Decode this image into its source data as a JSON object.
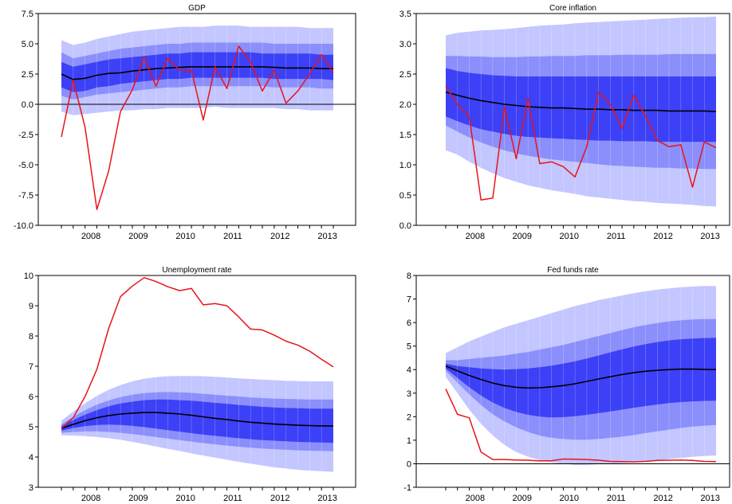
{
  "colors": {
    "band_outer": "#C3C6FF",
    "band_mid": "#8B8FFB",
    "band_inner": "#3C40F6",
    "median": "#000000",
    "actual": "#E8141A",
    "zero_line": "#000000"
  },
  "chart_data": [
    {
      "type": "area",
      "title": "GDP",
      "x": [
        2007.75,
        2008.0,
        2008.25,
        2008.5,
        2008.75,
        2009.0,
        2009.25,
        2009.5,
        2009.75,
        2010.0,
        2010.25,
        2010.5,
        2010.75,
        2011.0,
        2011.25,
        2011.5,
        2011.75,
        2012.0,
        2012.25,
        2012.5,
        2012.75,
        2013.0,
        2013.25,
        2013.5
      ],
      "ylim": [
        -10.0,
        7.5
      ],
      "ytick_labels": [
        "7.5",
        "5.0",
        "2.5",
        "0.0",
        "-2.5",
        "-5.0",
        "-7.5",
        "-10.0"
      ],
      "ytick_values": [
        7.5,
        5.0,
        2.5,
        0.0,
        -2.5,
        -5.0,
        -7.5,
        -10.0
      ],
      "xtick_labels": [
        "2008",
        "2009",
        "2010",
        "2011",
        "2012",
        "2013"
      ],
      "xtick_values": [
        2008.0,
        2009.0,
        2010.0,
        2011.0,
        2012.0,
        2013.0
      ],
      "zero_line": 0,
      "bands": {
        "outer_lo": [
          -0.6,
          -0.9,
          -0.8,
          -0.7,
          -0.6,
          -0.5,
          -0.5,
          -0.4,
          -0.4,
          -0.3,
          -0.3,
          -0.3,
          -0.3,
          -0.2,
          -0.3,
          -0.3,
          -0.3,
          -0.3,
          -0.3,
          -0.4,
          -0.4,
          -0.5,
          -0.5,
          -0.5
        ],
        "outer_hi": [
          5.3,
          4.9,
          5.1,
          5.4,
          5.6,
          5.8,
          6.0,
          6.1,
          6.2,
          6.3,
          6.4,
          6.4,
          6.4,
          6.5,
          6.5,
          6.5,
          6.4,
          6.4,
          6.4,
          6.4,
          6.4,
          6.3,
          6.3,
          6.3
        ],
        "mid_lo": [
          0.7,
          0.4,
          0.6,
          0.8,
          0.9,
          1.0,
          1.1,
          1.2,
          1.3,
          1.4,
          1.4,
          1.5,
          1.5,
          1.5,
          1.5,
          1.5,
          1.5,
          1.5,
          1.4,
          1.4,
          1.4,
          1.4,
          1.3,
          1.3
        ],
        "mid_hi": [
          4.3,
          3.8,
          4.0,
          4.2,
          4.4,
          4.6,
          4.7,
          4.8,
          4.9,
          5.0,
          5.0,
          5.1,
          5.1,
          5.1,
          5.1,
          5.1,
          5.1,
          5.1,
          5.0,
          5.0,
          5.0,
          5.0,
          5.0,
          5.0
        ],
        "inner_lo": [
          1.4,
          1.0,
          1.1,
          1.4,
          1.5,
          1.7,
          1.8,
          1.9,
          2.0,
          2.1,
          2.1,
          2.2,
          2.2,
          2.2,
          2.2,
          2.2,
          2.2,
          2.2,
          2.1,
          2.1,
          2.1,
          2.1,
          2.1,
          2.0
        ],
        "inner_hi": [
          3.5,
          3.1,
          3.3,
          3.5,
          3.7,
          3.8,
          3.9,
          4.0,
          4.1,
          4.2,
          4.2,
          4.3,
          4.3,
          4.3,
          4.3,
          4.3,
          4.3,
          4.2,
          4.2,
          4.2,
          4.2,
          4.2,
          4.1,
          4.1
        ]
      },
      "median": [
        2.5,
        2.05,
        2.15,
        2.4,
        2.55,
        2.6,
        2.75,
        2.85,
        2.95,
        3.0,
        3.05,
        3.1,
        3.1,
        3.1,
        3.1,
        3.1,
        3.1,
        3.1,
        3.05,
        3.0,
        3.0,
        3.0,
        2.95,
        2.95
      ],
      "actual": [
        -2.7,
        2.0,
        -1.9,
        -8.7,
        -5.5,
        -0.6,
        1.2,
        3.9,
        1.5,
        3.8,
        2.8,
        2.8,
        -1.3,
        3.1,
        1.3,
        4.8,
        3.5,
        1.1,
        2.8,
        0.1,
        1.1,
        2.5,
        4.1,
        2.6
      ]
    },
    {
      "type": "area",
      "title": "Core inflation",
      "x": [
        2007.75,
        2008.0,
        2008.25,
        2008.5,
        2008.75,
        2009.0,
        2009.25,
        2009.5,
        2009.75,
        2010.0,
        2010.25,
        2010.5,
        2010.75,
        2011.0,
        2011.25,
        2011.5,
        2011.75,
        2012.0,
        2012.25,
        2012.5,
        2012.75,
        2013.0,
        2013.25,
        2013.5
      ],
      "ylim": [
        0.0,
        3.5
      ],
      "ytick_labels": [
        "3.5",
        "3.0",
        "2.5",
        "2.0",
        "1.5",
        "1.0",
        "0.5",
        "0.0"
      ],
      "ytick_values": [
        3.5,
        3.0,
        2.5,
        2.0,
        1.5,
        1.0,
        0.5,
        0.0
      ],
      "xtick_labels": [
        "2008",
        "2009",
        "2010",
        "2011",
        "2012",
        "2013"
      ],
      "xtick_values": [
        2008.0,
        2009.0,
        2010.0,
        2011.0,
        2012.0,
        2013.0
      ],
      "bands": {
        "outer_lo": [
          1.24,
          1.17,
          1.05,
          0.95,
          0.86,
          0.78,
          0.72,
          0.66,
          0.62,
          0.58,
          0.55,
          0.52,
          0.48,
          0.46,
          0.44,
          0.42,
          0.4,
          0.39,
          0.37,
          0.36,
          0.35,
          0.34,
          0.32,
          0.31
        ],
        "outer_hi": [
          3.14,
          3.18,
          3.2,
          3.22,
          3.23,
          3.24,
          3.26,
          3.28,
          3.3,
          3.31,
          3.32,
          3.34,
          3.35,
          3.36,
          3.37,
          3.38,
          3.39,
          3.4,
          3.41,
          3.42,
          3.43,
          3.44,
          3.44,
          3.45
        ],
        "mid_lo": [
          1.65,
          1.55,
          1.45,
          1.37,
          1.3,
          1.24,
          1.19,
          1.15,
          1.12,
          1.09,
          1.07,
          1.05,
          1.03,
          1.01,
          0.99,
          0.98,
          0.97,
          0.96,
          0.95,
          0.95,
          0.94,
          0.94,
          0.93,
          0.93
        ],
        "mid_hi": [
          2.8,
          2.8,
          2.79,
          2.79,
          2.78,
          2.78,
          2.78,
          2.79,
          2.79,
          2.8,
          2.8,
          2.8,
          2.81,
          2.81,
          2.81,
          2.82,
          2.82,
          2.82,
          2.82,
          2.83,
          2.83,
          2.83,
          2.83,
          2.83
        ],
        "inner_lo": [
          1.8,
          1.72,
          1.65,
          1.59,
          1.55,
          1.51,
          1.48,
          1.46,
          1.45,
          1.44,
          1.43,
          1.42,
          1.41,
          1.4,
          1.4,
          1.39,
          1.39,
          1.39,
          1.38,
          1.38,
          1.38,
          1.38,
          1.38,
          1.38
        ],
        "inner_hi": [
          2.6,
          2.55,
          2.52,
          2.5,
          2.48,
          2.47,
          2.46,
          2.46,
          2.46,
          2.46,
          2.46,
          2.46,
          2.46,
          2.46,
          2.46,
          2.46,
          2.46,
          2.46,
          2.46,
          2.46,
          2.46,
          2.46,
          2.46,
          2.46
        ]
      },
      "median": [
        2.2,
        2.15,
        2.1,
        2.06,
        2.03,
        2.0,
        1.98,
        1.96,
        1.95,
        1.94,
        1.94,
        1.93,
        1.92,
        1.92,
        1.91,
        1.91,
        1.9,
        1.9,
        1.9,
        1.89,
        1.89,
        1.89,
        1.89,
        1.88
      ],
      "actual": [
        2.3,
        2.0,
        1.8,
        0.42,
        0.45,
        1.95,
        1.1,
        2.1,
        1.02,
        1.05,
        0.97,
        0.8,
        1.3,
        2.2,
        2.0,
        1.6,
        2.15,
        1.8,
        1.4,
        1.3,
        1.33,
        0.63,
        1.38,
        1.28
      ]
    },
    {
      "type": "area",
      "title": "Unemployment rate",
      "x": [
        2007.75,
        2008.0,
        2008.25,
        2008.5,
        2008.75,
        2009.0,
        2009.25,
        2009.5,
        2009.75,
        2010.0,
        2010.25,
        2010.5,
        2010.75,
        2011.0,
        2011.25,
        2011.5,
        2011.75,
        2012.0,
        2012.25,
        2012.5,
        2012.75,
        2013.0,
        2013.25,
        2013.5
      ],
      "ylim": [
        3,
        10
      ],
      "ytick_labels": [
        "10",
        "9",
        "8",
        "7",
        "6",
        "5",
        "4",
        "3"
      ],
      "ytick_values": [
        10,
        9,
        8,
        7,
        6,
        5,
        4,
        3
      ],
      "xtick_labels": [
        "2008",
        "2009",
        "2010",
        "2011",
        "2012",
        "2013"
      ],
      "xtick_values": [
        2008.0,
        2009.0,
        2010.0,
        2011.0,
        2012.0,
        2013.0
      ],
      "bands": {
        "outer_lo": [
          4.72,
          4.71,
          4.69,
          4.66,
          4.62,
          4.57,
          4.5,
          4.43,
          4.35,
          4.27,
          4.2,
          4.12,
          4.05,
          3.98,
          3.91,
          3.84,
          3.78,
          3.72,
          3.66,
          3.62,
          3.58,
          3.55,
          3.53,
          3.51
        ],
        "outer_hi": [
          5.2,
          5.5,
          5.78,
          6.02,
          6.22,
          6.38,
          6.5,
          6.59,
          6.64,
          6.67,
          6.68,
          6.68,
          6.67,
          6.65,
          6.63,
          6.6,
          6.58,
          6.56,
          6.54,
          6.52,
          6.51,
          6.5,
          6.5,
          6.5
        ],
        "mid_lo": [
          4.8,
          4.83,
          4.85,
          4.85,
          4.83,
          4.8,
          4.76,
          4.71,
          4.66,
          4.61,
          4.56,
          4.51,
          4.46,
          4.42,
          4.38,
          4.34,
          4.31,
          4.28,
          4.26,
          4.24,
          4.22,
          4.21,
          4.2,
          4.19
        ],
        "mid_hi": [
          5.08,
          5.33,
          5.55,
          5.73,
          5.87,
          5.98,
          6.06,
          6.11,
          6.14,
          6.15,
          6.14,
          6.12,
          6.09,
          6.06,
          6.03,
          6.0,
          5.97,
          5.95,
          5.93,
          5.92,
          5.91,
          5.9,
          5.9,
          5.9
        ],
        "inner_lo": [
          4.87,
          4.96,
          5.02,
          5.06,
          5.07,
          5.06,
          5.03,
          4.99,
          4.94,
          4.89,
          4.84,
          4.79,
          4.74,
          4.7,
          4.66,
          4.62,
          4.59,
          4.56,
          4.54,
          4.52,
          4.5,
          4.49,
          4.48,
          4.47
        ],
        "inner_hi": [
          5.02,
          5.22,
          5.4,
          5.55,
          5.68,
          5.77,
          5.83,
          5.88,
          5.9,
          5.9,
          5.88,
          5.86,
          5.83,
          5.79,
          5.76,
          5.72,
          5.69,
          5.66,
          5.64,
          5.62,
          5.61,
          5.6,
          5.6,
          5.6
        ]
      },
      "median": [
        4.95,
        5.08,
        5.2,
        5.3,
        5.37,
        5.42,
        5.45,
        5.47,
        5.47,
        5.45,
        5.42,
        5.38,
        5.33,
        5.28,
        5.24,
        5.19,
        5.15,
        5.12,
        5.09,
        5.07,
        5.05,
        5.04,
        5.03,
        5.03
      ],
      "actual": [
        4.95,
        5.3,
        6.0,
        6.9,
        8.25,
        9.3,
        9.65,
        9.93,
        9.8,
        9.63,
        9.5,
        9.57,
        9.03,
        9.07,
        9.0,
        8.63,
        8.23,
        8.2,
        8.03,
        7.83,
        7.7,
        7.5,
        7.23,
        6.98
      ]
    },
    {
      "type": "area",
      "title": "Fed funds rate",
      "x": [
        2007.75,
        2008.0,
        2008.25,
        2008.5,
        2008.75,
        2009.0,
        2009.25,
        2009.5,
        2009.75,
        2010.0,
        2010.25,
        2010.5,
        2010.75,
        2011.0,
        2011.25,
        2011.5,
        2011.75,
        2012.0,
        2012.25,
        2012.5,
        2012.75,
        2013.0,
        2013.25,
        2013.5
      ],
      "ylim": [
        -1,
        8
      ],
      "ytick_labels": [
        "8",
        "7",
        "6",
        "5",
        "4",
        "3",
        "2",
        "1",
        "0",
        "-1"
      ],
      "ytick_values": [
        8,
        7,
        6,
        5,
        4,
        3,
        2,
        1,
        0,
        -1
      ],
      "xtick_labels": [
        "2008",
        "2009",
        "2010",
        "2011",
        "2012",
        "2013"
      ],
      "xtick_values": [
        2008.0,
        2009.0,
        2010.0,
        2011.0,
        2012.0,
        2013.0
      ],
      "zero_line": 0,
      "bands": {
        "outer_lo": [
          3.7,
          3.0,
          2.3,
          1.7,
          1.2,
          0.8,
          0.5,
          0.3,
          0.15,
          0.05,
          0.0,
          -0.05,
          -0.05,
          -0.02,
          0.0,
          0.03,
          0.06,
          0.1,
          0.15,
          0.2,
          0.25,
          0.3,
          0.33,
          0.35
        ],
        "outer_hi": [
          4.7,
          4.95,
          5.2,
          5.4,
          5.6,
          5.8,
          5.95,
          6.1,
          6.25,
          6.4,
          6.55,
          6.7,
          6.82,
          6.95,
          7.05,
          7.15,
          7.25,
          7.33,
          7.4,
          7.45,
          7.5,
          7.53,
          7.55,
          7.55
        ],
        "mid_lo": [
          3.95,
          3.45,
          2.95,
          2.5,
          2.1,
          1.8,
          1.55,
          1.35,
          1.2,
          1.1,
          1.05,
          1.02,
          1.02,
          1.05,
          1.1,
          1.15,
          1.22,
          1.3,
          1.38,
          1.45,
          1.52,
          1.58,
          1.62,
          1.65
        ],
        "mid_hi": [
          4.4,
          4.4,
          4.45,
          4.5,
          4.55,
          4.6,
          4.68,
          4.75,
          4.85,
          4.95,
          5.05,
          5.17,
          5.3,
          5.43,
          5.55,
          5.68,
          5.8,
          5.9,
          5.98,
          6.05,
          6.1,
          6.13,
          6.15,
          6.15
        ],
        "inner_lo": [
          4.05,
          3.65,
          3.25,
          2.9,
          2.6,
          2.37,
          2.2,
          2.08,
          2.0,
          1.97,
          1.98,
          2.02,
          2.08,
          2.15,
          2.22,
          2.3,
          2.38,
          2.45,
          2.52,
          2.58,
          2.62,
          2.65,
          2.67,
          2.68
        ],
        "inner_hi": [
          4.25,
          4.15,
          4.1,
          4.05,
          4.02,
          4.0,
          4.02,
          4.05,
          4.1,
          4.17,
          4.25,
          4.35,
          4.47,
          4.6,
          4.73,
          4.86,
          4.98,
          5.08,
          5.17,
          5.24,
          5.29,
          5.32,
          5.34,
          5.35
        ]
      },
      "median": [
        4.15,
        3.95,
        3.75,
        3.58,
        3.43,
        3.32,
        3.25,
        3.22,
        3.23,
        3.27,
        3.32,
        3.4,
        3.5,
        3.6,
        3.7,
        3.79,
        3.87,
        3.93,
        3.97,
        4.0,
        4.02,
        4.02,
        4.01,
        4.0
      ],
      "actual": [
        3.18,
        2.1,
        1.95,
        0.5,
        0.18,
        0.18,
        0.16,
        0.15,
        0.12,
        0.13,
        0.2,
        0.19,
        0.18,
        0.15,
        0.1,
        0.09,
        0.08,
        0.1,
        0.14,
        0.15,
        0.16,
        0.14,
        0.1,
        0.09
      ]
    }
  ]
}
